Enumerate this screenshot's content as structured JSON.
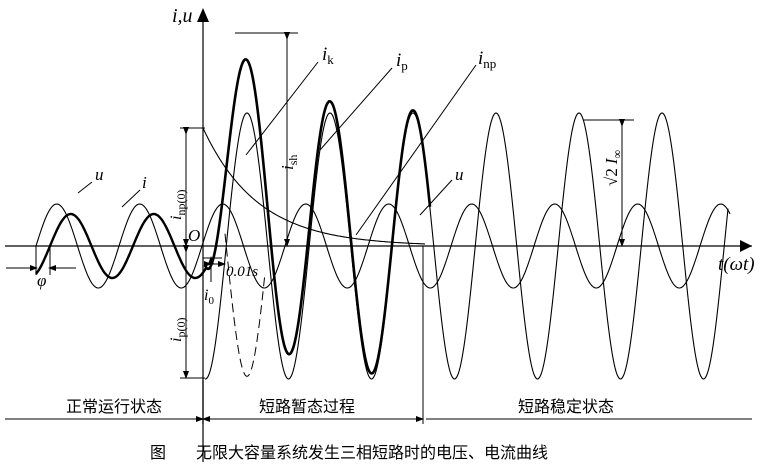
{
  "labels": {
    "axis_y": "i,u",
    "axis_x": "t(ωt)",
    "origin": "O",
    "ik_main": "i",
    "ik_sub": "k",
    "ip_main": "i",
    "ip_sub": "p",
    "inp_main": "i",
    "inp_sub": "np",
    "u_left": "u",
    "i_left": "i",
    "u_right": "u",
    "phi": "φ",
    "ish_main": "i",
    "ish_sub": "sh",
    "inp0_main": "i",
    "inp0_sub": "np(0)",
    "ip0_main": "i",
    "ip0_sub": "p(0)",
    "i0_main": "i",
    "i0_sub": "0",
    "time_001": "0.01s",
    "sqrt2": "√2",
    "iinf_main": "I",
    "iinf_sub": "∞"
  },
  "regions": {
    "normal": "正常运行状态",
    "transient": "短路暂态过程",
    "steady": "短路稳定状态"
  },
  "caption": {
    "prefix": "图",
    "text": "无限大容量系统发生三相短路时的电压、电流曲线"
  }
}
